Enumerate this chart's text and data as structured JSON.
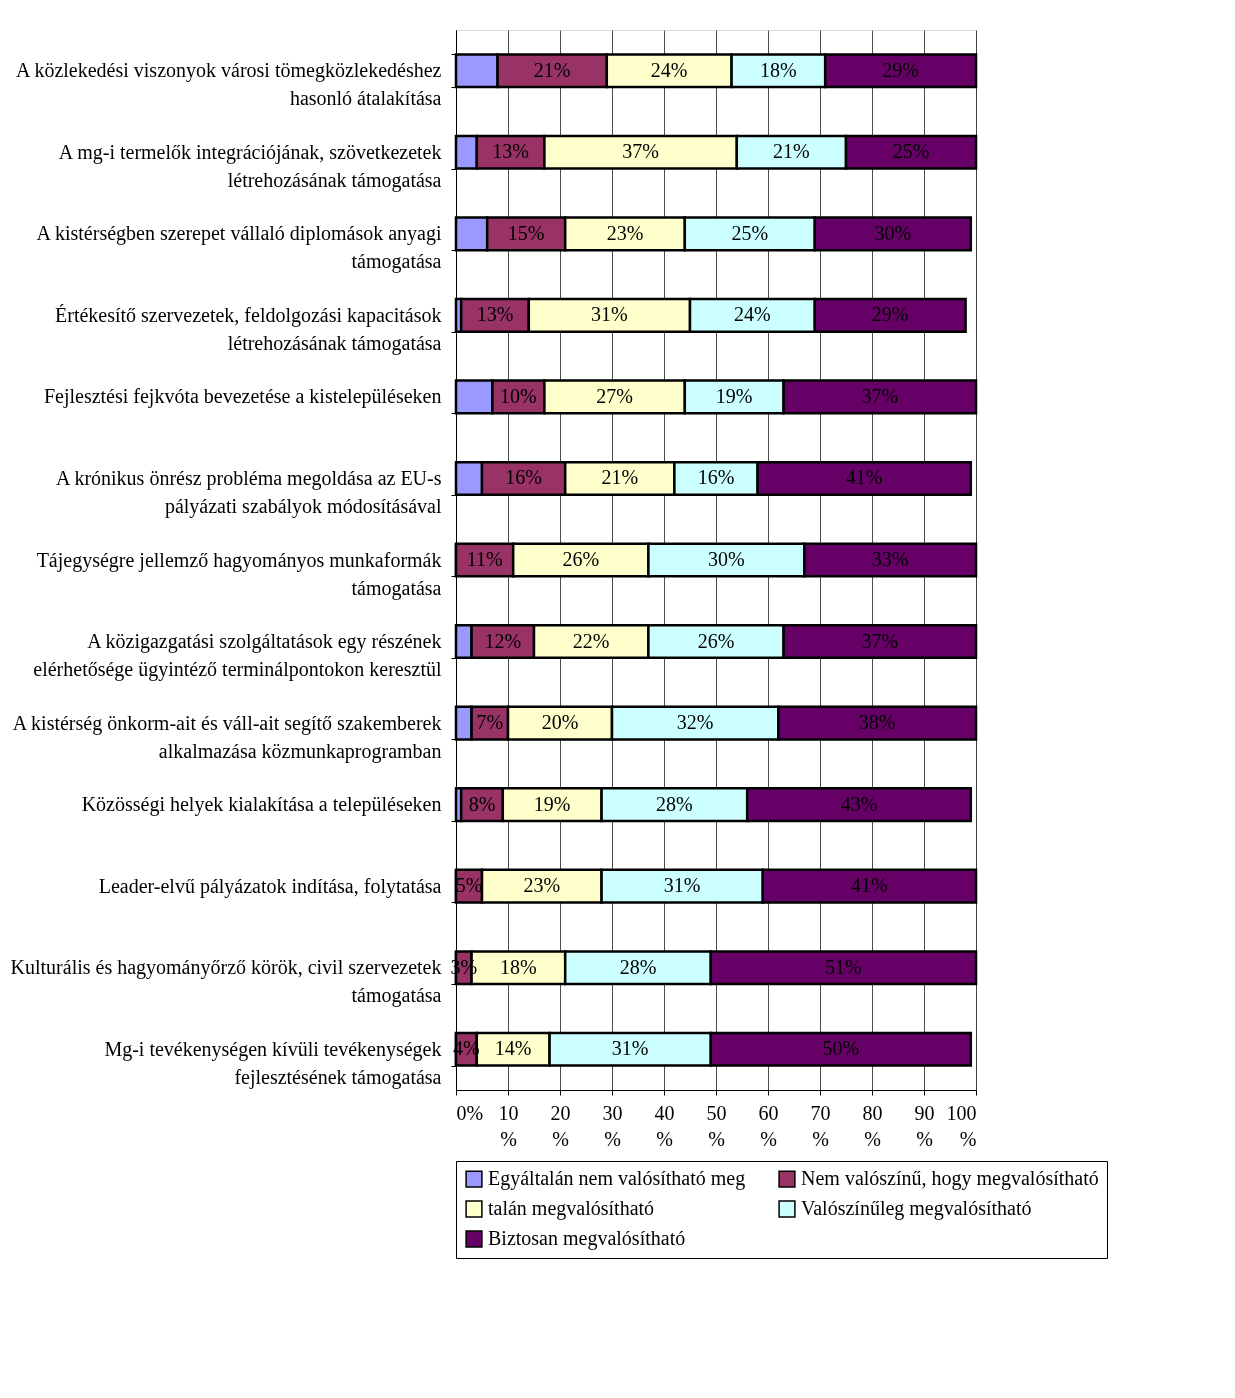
{
  "chart_data": {
    "type": "bar",
    "orientation": "horizontal",
    "stacked": true,
    "categories": [
      "A közlekedési viszonyok városi tömegközlekedéshez\nhasonló átalakítása",
      "A mg-i termelők integrációjának, szövetkezetek\nlétrehozásának támogatása",
      "A kistérségben szerepet vállaló diplomások anyagi\ntámogatása",
      "Értékesítő szervezetek, feldolgozási kapacitások\nlétrehozásának támogatása",
      "Fejlesztési fejkvóta bevezetése a kistelepüléseken",
      "A krónikus önrész probléma megoldása az EU-s\npályázati szabályok módosításával",
      "Tájegységre jellemző hagyományos munkaformák\ntámogatása",
      "A közigazgatási szolgáltatások egy részének\nelérhetősége ügyintéző terminálpontokon keresztül",
      "A kistérség önkorm-ait és váll-ait segítő szakemberek\nalkalmazása közmunkaprogramban",
      "Közösségi helyek kialakítása a településeken",
      "Leader-elvű pályázatok indítása, folytatása",
      "Kulturális és hagyományőrző körök, civil szervezetek\ntámogatása",
      "Mg-i tevékenységen kívüli tevékenységek\nfejlesztésének támogatása"
    ],
    "series": [
      {
        "name": "Egyáltalán nem valósítható meg",
        "color": "#9999ff",
        "values": [
          8,
          4,
          6,
          1,
          7,
          5,
          0,
          3,
          3,
          1,
          0,
          0,
          0
        ]
      },
      {
        "name": "Nem valószínű, hogy megvalósítható",
        "color": "#993366",
        "values": [
          21,
          13,
          15,
          13,
          10,
          16,
          11,
          12,
          7,
          8,
          5,
          3,
          4
        ],
        "value_labels": [
          "21%",
          "13%",
          "15%",
          "13%",
          "10%",
          "16%",
          "11%",
          "12%",
          "7%",
          "8%",
          "5%",
          "3%",
          "4%"
        ]
      },
      {
        "name": "talán megvalósítható",
        "color": "#ffffcc",
        "values": [
          24,
          37,
          23,
          31,
          27,
          21,
          26,
          22,
          20,
          19,
          23,
          18,
          14
        ],
        "value_labels": [
          "24%",
          "37%",
          "23%",
          "31%",
          "27%",
          "21%",
          "26%",
          "22%",
          "20%",
          "19%",
          "23%",
          "18%",
          "14%"
        ]
      },
      {
        "name": "Valószínűleg megvalósítható",
        "color": "#ccffff",
        "values": [
          18,
          21,
          25,
          24,
          19,
          16,
          30,
          26,
          32,
          28,
          31,
          28,
          31
        ],
        "value_labels": [
          "18%",
          "21%",
          "25%",
          "24%",
          "19%",
          "16%",
          "30%",
          "26%",
          "32%",
          "28%",
          "31%",
          "28%",
          "31%"
        ]
      },
      {
        "name": "Biztosan megvalósítható",
        "color": "#660066",
        "values": [
          29,
          25,
          30,
          29,
          37,
          41,
          33,
          37,
          38,
          43,
          41,
          51,
          50
        ],
        "value_labels": [
          "29%",
          "25%",
          "30%",
          "29%",
          "37%",
          "41%",
          "33%",
          "37%",
          "38%",
          "43%",
          "41%",
          "51%",
          "50%"
        ]
      }
    ],
    "xlim": [
      0,
      100
    ],
    "xticks": [
      {
        "value": 0,
        "label": "0%"
      },
      {
        "value": 10,
        "label": "10 %"
      },
      {
        "value": 20,
        "label": "20 %"
      },
      {
        "value": 30,
        "label": "30 %"
      },
      {
        "value": 40,
        "label": "40 %"
      },
      {
        "value": 50,
        "label": "50 %"
      },
      {
        "value": 60,
        "label": "60 %"
      },
      {
        "value": 70,
        "label": "70 %"
      },
      {
        "value": 80,
        "label": "80 %"
      },
      {
        "value": 90,
        "label": "90 %"
      },
      {
        "value": 100,
        "label": "100 %"
      }
    ],
    "grid": "x",
    "legend": "bottom"
  }
}
